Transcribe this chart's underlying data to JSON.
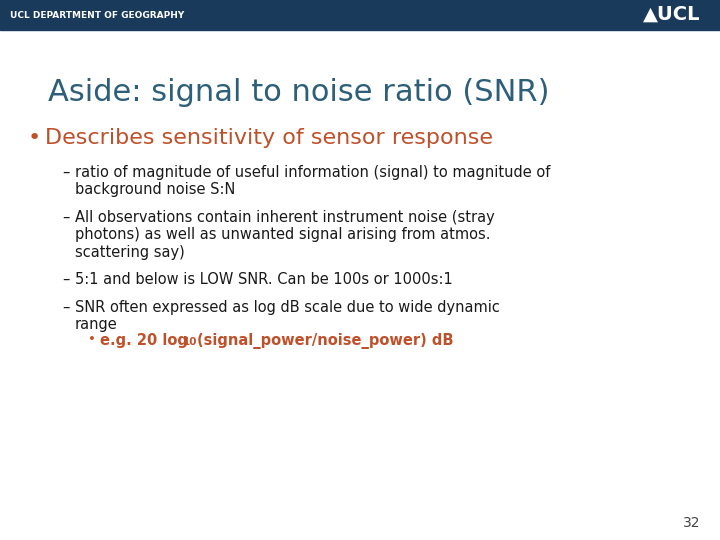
{
  "header_bg_color": "#1a3a5c",
  "header_text": "UCL DEPARTMENT OF GEOGRAPHY",
  "header_text_color": "#ffffff",
  "header_font_size": 6.5,
  "title": "Aside: signal to noise ratio (SNR)",
  "title_color": "#2e5f7a",
  "title_font_size": 22,
  "bullet_color": "#c0502a",
  "bullet_text": "Describes sensitivity of sensor response",
  "bullet_font_size": 16,
  "sub_bullet_font_size": 10.5,
  "sub_bullet_color": "#1a1a1a",
  "sub_sub_bullet_color": "#c0502a",
  "page_number": "32",
  "bg_color": "#ffffff"
}
